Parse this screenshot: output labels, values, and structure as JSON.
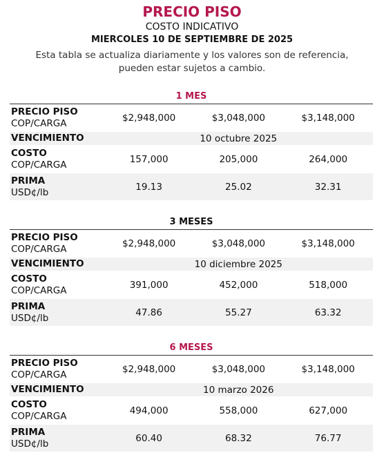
{
  "header": {
    "title": "PRECIO PISO",
    "subtitle": "COSTO INDICATIVO",
    "date": "MIERCOLES 10 DE SEPTIEMBRE DE 2025",
    "note": [
      "Esta tabla se actualiza diariamente y los valores son de referencia,",
      "pueden estar sujetos a cambio."
    ]
  },
  "sections": [
    {
      "title": "1 MES",
      "rows": [
        {
          "label": "PRECIO PISO",
          "unit": "COP/CARGA",
          "values": [
            "$2,948,000",
            "$3,048,000",
            "$3,148,000"
          ]
        },
        {
          "label": "VENCIMIENTO",
          "value": "10 octubre 2025"
        },
        {
          "label": "COSTO",
          "unit": "COP/CARGA",
          "values": [
            "157,000",
            "205,000",
            "264,000"
          ]
        },
        {
          "label": "PRIMA",
          "unit": "USD¢/lb",
          "values": [
            "19.13",
            "25.02",
            "32.31"
          ]
        }
      ]
    },
    {
      "title": "3 MESES",
      "rows": [
        {
          "label": "PRECIO PISO",
          "unit": "COP/CARGA",
          "values": [
            "$2,948,000",
            "$3,048,000",
            "$3,148,000"
          ]
        },
        {
          "label": "VENCIMIENTO",
          "value": "10 diciembre 2025"
        },
        {
          "label": "COSTO",
          "unit": "COP/CARGA",
          "values": [
            "391,000",
            "452,000",
            "518,000"
          ]
        },
        {
          "label": "PRIMA",
          "unit": "USD¢/lb",
          "values": [
            "47.86",
            "55.27",
            "63.32"
          ]
        }
      ]
    },
    {
      "title": "6 MESES",
      "rows": [
        {
          "label": "PRECIO PISO",
          "unit": "COP/CARGA",
          "values": [
            "$2,948,000",
            "$3,048,000",
            "$3,148,000"
          ]
        },
        {
          "label": "VENCIMIENTO",
          "value": "10 marzo 2026"
        },
        {
          "label": "COSTO",
          "unit": "COP/CARGA",
          "values": [
            "494,000",
            "558,000",
            "627,000"
          ]
        },
        {
          "label": "PRIMA",
          "unit": "USD¢/lb",
          "values": [
            "60.40",
            "68.32",
            "76.77"
          ]
        }
      ]
    }
  ]
}
